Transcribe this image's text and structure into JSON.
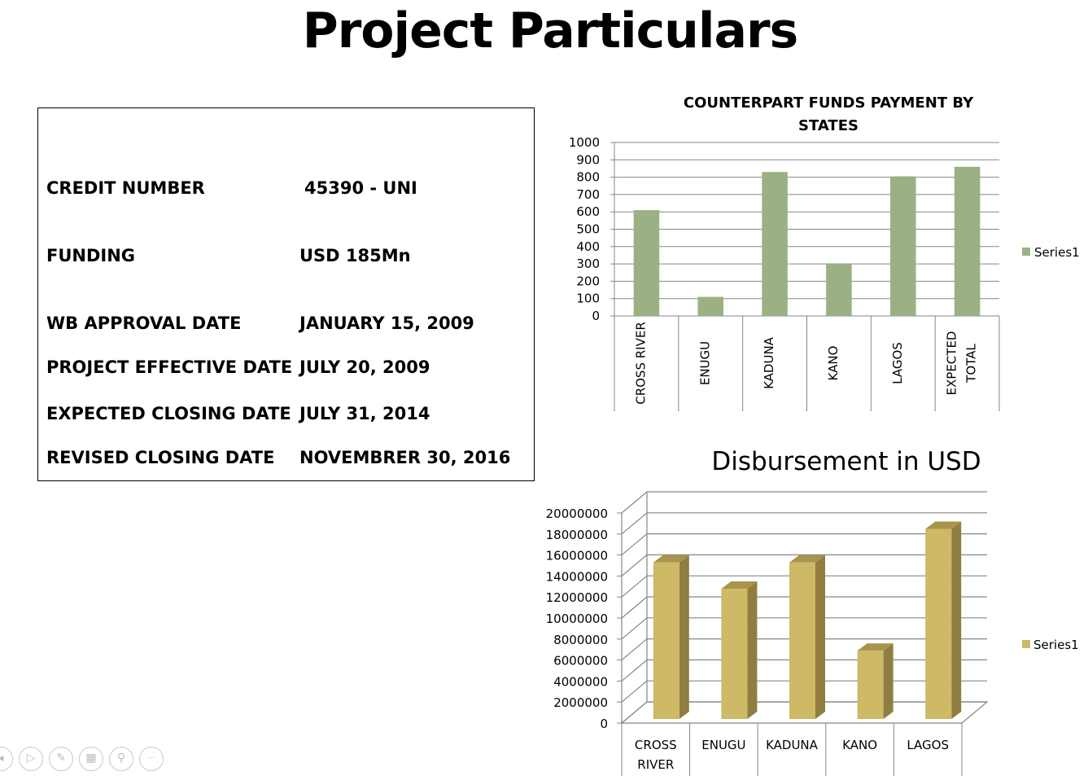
{
  "slide": {
    "title": "Project Particulars"
  },
  "info": {
    "rows": [
      {
        "label": "CREDIT NUMBER",
        "value": "45390 - UNI"
      },
      {
        "label": "FUNDING",
        "value": "USD 185Mn"
      },
      {
        "label": "WB APPROVAL DATE",
        "value": "JANUARY 15, 2009"
      },
      {
        "label": "PROJECT EFFECTIVE DATE",
        "value": "JULY 20, 2009"
      },
      {
        "label": "EXPECTED CLOSING DATE",
        "value": "JULY 31, 2014"
      },
      {
        "label": "REVISED CLOSING DATE",
        "value": "NOVEMBRER 30, 2016"
      }
    ]
  },
  "chart_data": [
    {
      "type": "bar",
      "title_lines": [
        "COUNTERPART FUNDS PAYMENT BY",
        "STATES"
      ],
      "categories": [
        [
          "CROSS RIVER"
        ],
        [
          "ENUGU"
        ],
        [
          "KADUNA"
        ],
        [
          "KANO"
        ],
        [
          "LAGOS"
        ],
        [
          "EXPECTED",
          "TOTAL"
        ]
      ],
      "series": [
        {
          "name": "Series1",
          "values": [
            610,
            110,
            830,
            300,
            805,
            860
          ]
        }
      ],
      "ylim": [
        0,
        1000
      ],
      "ytick_step": 100,
      "color": "#9bb183",
      "legend": "right",
      "grid": true
    },
    {
      "type": "bar",
      "style": "3d",
      "title": "Disbursement in USD",
      "categories": [
        [
          "CROSS",
          "RIVER"
        ],
        [
          "ENUGU"
        ],
        [
          "KADUNA"
        ],
        [
          "KANO"
        ],
        [
          "LAGOS"
        ]
      ],
      "series": [
        {
          "name": "Series1",
          "values": [
            14900000,
            12400000,
            14900000,
            6500000,
            18100000
          ]
        }
      ],
      "ylim": [
        0,
        20000000
      ],
      "ytick_step": 2000000,
      "color": "#cdb966",
      "color_side": "#8f7e3f",
      "color_top": "#a9944c",
      "legend": "right",
      "grid": true
    }
  ],
  "toolbar": {
    "icons": [
      "previous-icon",
      "play-icon",
      "pen-icon",
      "slides-icon",
      "zoom-icon",
      "more-icon"
    ],
    "glyphs": [
      "◂",
      "▷",
      "✎",
      "▦",
      "⚲",
      "···"
    ]
  }
}
